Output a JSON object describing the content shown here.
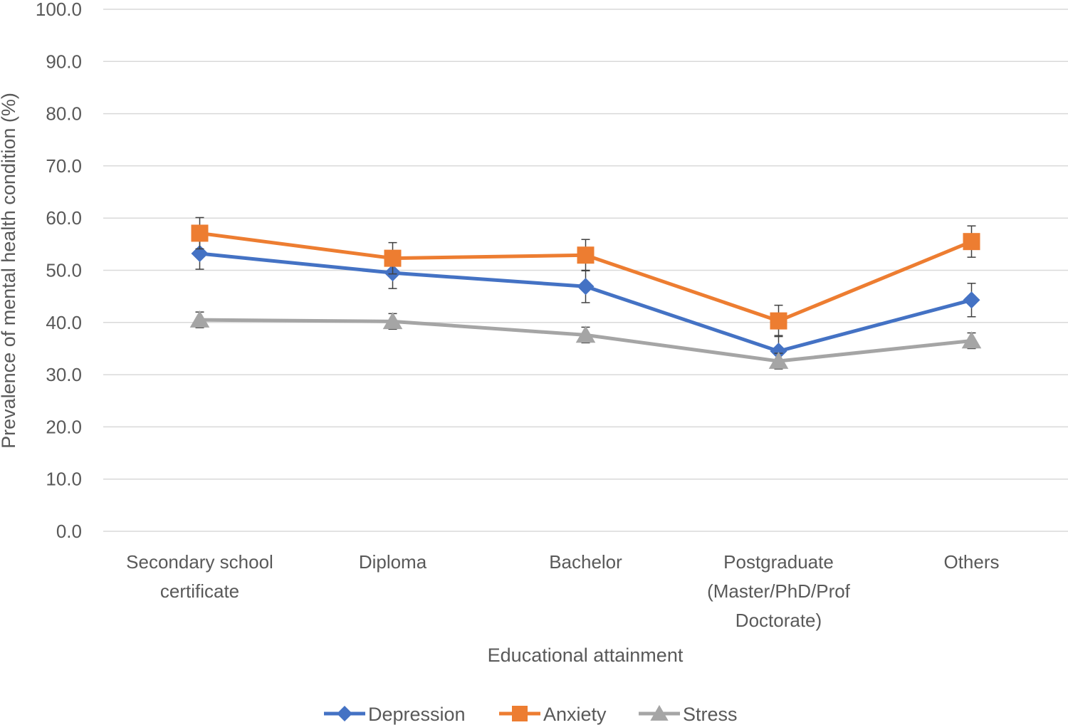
{
  "chart_data": {
    "type": "line",
    "title": "",
    "xlabel": "Educational attainment",
    "ylabel": "Prevalence of mental health condition (%)",
    "ylim": [
      0,
      100
    ],
    "yticks": [
      "0.0",
      "10.0",
      "20.0",
      "30.0",
      "40.0",
      "50.0",
      "60.0",
      "70.0",
      "80.0",
      "90.0",
      "100.0"
    ],
    "grid": true,
    "legend_position": "bottom",
    "categories": [
      [
        "Secondary school",
        "certificate"
      ],
      [
        "Diploma"
      ],
      [
        "Bachelor"
      ],
      [
        "Postgraduate",
        "(Master/PhD/Prof",
        "Doctorate)"
      ],
      [
        "Others"
      ]
    ],
    "series": [
      {
        "name": "Depression",
        "color": "#4472C4",
        "marker": "diamond",
        "values": [
          53.2,
          49.5,
          46.9,
          34.5,
          44.3
        ],
        "error": [
          3.0,
          3.0,
          3.1,
          3.0,
          3.2
        ]
      },
      {
        "name": "Anxiety",
        "color": "#ED7D31",
        "marker": "square",
        "values": [
          57.1,
          52.3,
          52.9,
          40.3,
          55.5
        ],
        "error": [
          3.0,
          3.0,
          3.0,
          3.0,
          3.0
        ]
      },
      {
        "name": "Stress",
        "color": "#A5A5A5",
        "marker": "triangle",
        "values": [
          40.5,
          40.2,
          37.6,
          32.6,
          36.5
        ],
        "error": [
          1.5,
          1.5,
          1.5,
          1.5,
          1.5
        ]
      }
    ]
  }
}
